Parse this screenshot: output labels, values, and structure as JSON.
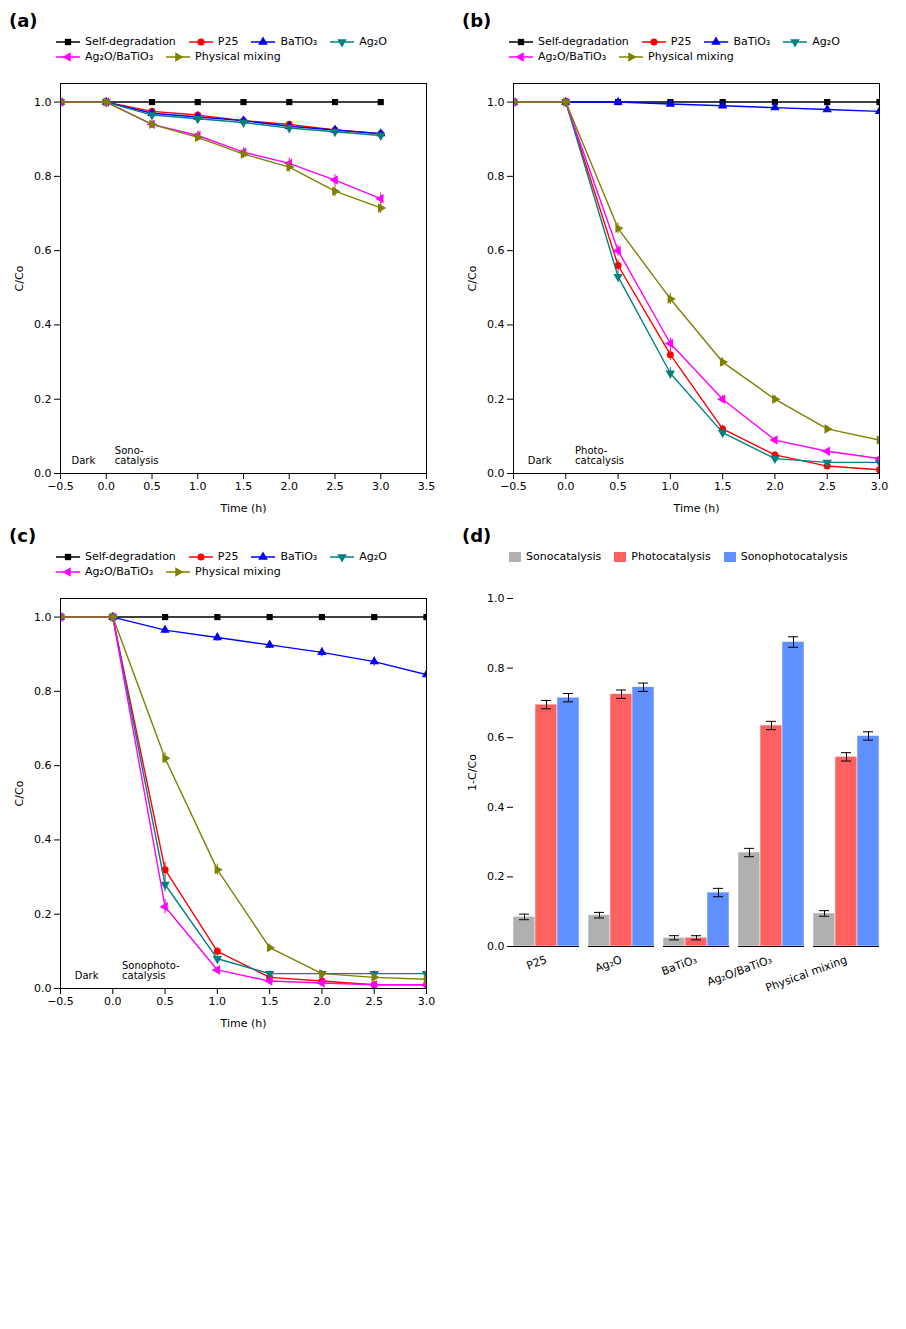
{
  "chart_data": [
    {
      "type": "line",
      "title": "(a)",
      "xlabel": "Time (h)",
      "ylabel": "C/Co",
      "xlim": [
        -0.5,
        3.5
      ],
      "ylim": [
        0.0,
        1.05
      ],
      "xticks": [
        {
          "value": -0.5,
          "label": "−0.5"
        },
        {
          "value": 0.0,
          "label": "0.0"
        },
        0.5,
        {
          "value": 1.0,
          "label": "1.0"
        },
        1.5,
        {
          "value": 2.0,
          "label": "2.0"
        },
        2.5,
        {
          "value": 3.0,
          "label": "3.0"
        },
        3.5
      ],
      "yticks": [
        {
          "value": 0.0,
          "label": "0.0"
        },
        0.2,
        0.4,
        0.6,
        0.8,
        {
          "value": 1.0,
          "label": "1.0"
        }
      ],
      "grid": false,
      "legend": "top",
      "annotations": [
        {
          "text": "Dark",
          "x": -0.25
        },
        {
          "text": "Sono-\ncatalysis",
          "x": 0.05
        }
      ],
      "series": [
        {
          "name": "Self-degradation",
          "color": "#000000",
          "marker": "square",
          "x": [
            -0.5,
            0.0,
            0.5,
            1.0,
            1.5,
            2.0,
            2.5,
            3.0
          ],
          "values": [
            1.0,
            1.0,
            1.0,
            1.0,
            1.0,
            1.0,
            1.0,
            1.0
          ],
          "yerr": [
            0.005,
            0.005,
            0.005,
            0.005,
            0.005,
            0.005,
            0.005,
            0.005
          ]
        },
        {
          "name": "P25",
          "color": "#ff0000",
          "marker": "circle",
          "x": [
            -0.5,
            0.0,
            0.5,
            1.0,
            1.5,
            2.0,
            2.5,
            3.0
          ],
          "values": [
            1.0,
            1.0,
            0.975,
            0.965,
            0.95,
            0.94,
            0.925,
            0.915
          ],
          "yerr": [
            0.005,
            0.005,
            0.008,
            0.008,
            0.008,
            0.008,
            0.008,
            0.008
          ]
        },
        {
          "name": "BaTiO₃",
          "color": "#0000ff",
          "marker": "triangle-up",
          "x": [
            -0.5,
            0.0,
            0.5,
            1.0,
            1.5,
            2.0,
            2.5,
            3.0
          ],
          "values": [
            1.0,
            1.0,
            0.97,
            0.96,
            0.95,
            0.935,
            0.925,
            0.915
          ],
          "yerr": [
            0.005,
            0.005,
            0.008,
            0.008,
            0.008,
            0.008,
            0.008,
            0.008
          ]
        },
        {
          "name": "Ag₂O",
          "color": "#008080",
          "marker": "triangle-down",
          "x": [
            -0.5,
            0.0,
            0.5,
            1.0,
            1.5,
            2.0,
            2.5,
            3.0
          ],
          "values": [
            1.0,
            1.0,
            0.965,
            0.955,
            0.945,
            0.93,
            0.92,
            0.91
          ],
          "yerr": [
            0.005,
            0.005,
            0.008,
            0.008,
            0.008,
            0.008,
            0.008,
            0.008
          ]
        },
        {
          "name": "Ag₂O/BaTiO₃",
          "color": "#ff00ff",
          "marker": "triangle-left",
          "x": [
            -0.5,
            0.0,
            0.5,
            1.0,
            1.5,
            2.0,
            2.5,
            3.0
          ],
          "values": [
            1.0,
            1.0,
            0.94,
            0.91,
            0.865,
            0.835,
            0.79,
            0.74
          ],
          "yerr": [
            0.005,
            0.005,
            0.01,
            0.012,
            0.012,
            0.015,
            0.015,
            0.015
          ]
        },
        {
          "name": "Physical mixing",
          "color": "#808000",
          "marker": "triangle-right",
          "x": [
            -0.5,
            0.0,
            0.5,
            1.0,
            1.5,
            2.0,
            2.5,
            3.0
          ],
          "values": [
            1.0,
            1.0,
            0.94,
            0.905,
            0.86,
            0.825,
            0.76,
            0.715
          ],
          "yerr": [
            0.005,
            0.005,
            0.01,
            0.012,
            0.012,
            0.015,
            0.015,
            0.015
          ]
        }
      ]
    },
    {
      "type": "line",
      "title": "(b)",
      "xlabel": "Time (h)",
      "ylabel": "C/Co",
      "xlim": [
        -0.5,
        3.0
      ],
      "ylim": [
        0.0,
        1.05
      ],
      "xticks": [
        {
          "value": -0.5,
          "label": "−0.5"
        },
        {
          "value": 0.0,
          "label": "0.0"
        },
        0.5,
        {
          "value": 1.0,
          "label": "1.0"
        },
        1.5,
        {
          "value": 2.0,
          "label": "2.0"
        },
        2.5,
        {
          "value": 3.0,
          "label": "3.0"
        }
      ],
      "yticks": [
        {
          "value": 0.0,
          "label": "0.0"
        },
        0.2,
        0.4,
        0.6,
        0.8,
        {
          "value": 1.0,
          "label": "1.0"
        }
      ],
      "grid": false,
      "legend": "top",
      "annotations": [
        {
          "text": "Dark",
          "x": -0.25
        },
        {
          "text": "Photo-\ncatcalysis",
          "x": 0.05
        }
      ],
      "series": [
        {
          "name": "Self-degradation",
          "color": "#000000",
          "marker": "square",
          "x": [
            -0.5,
            0.0,
            0.5,
            1.0,
            1.5,
            2.0,
            2.5,
            3.0
          ],
          "values": [
            1.0,
            1.0,
            1.0,
            1.0,
            1.0,
            1.0,
            1.0,
            1.0
          ],
          "yerr": [
            0.005,
            0.005,
            0.005,
            0.005,
            0.005,
            0.005,
            0.005,
            0.005
          ]
        },
        {
          "name": "P25",
          "color": "#ff0000",
          "marker": "circle",
          "x": [
            -0.5,
            0.0,
            0.5,
            1.0,
            1.5,
            2.0,
            2.5,
            3.0
          ],
          "values": [
            1.0,
            1.0,
            0.56,
            0.32,
            0.12,
            0.05,
            0.02,
            0.01
          ],
          "yerr": [
            0.005,
            0.005,
            0.015,
            0.015,
            0.01,
            0.008,
            0.005,
            0.005
          ]
        },
        {
          "name": "BaTiO₃",
          "color": "#0000ff",
          "marker": "triangle-up",
          "x": [
            -0.5,
            0.0,
            0.5,
            1.0,
            1.5,
            2.0,
            2.5,
            3.0
          ],
          "values": [
            1.0,
            1.0,
            1.0,
            0.995,
            0.99,
            0.985,
            0.98,
            0.975
          ],
          "yerr": [
            0.005,
            0.005,
            0.005,
            0.005,
            0.005,
            0.005,
            0.005,
            0.005
          ]
        },
        {
          "name": "Ag₂O",
          "color": "#008080",
          "marker": "triangle-down",
          "x": [
            -0.5,
            0.0,
            0.5,
            1.0,
            1.5,
            2.0,
            2.5,
            3.0
          ],
          "values": [
            1.0,
            1.0,
            0.53,
            0.27,
            0.11,
            0.04,
            0.03,
            0.03
          ],
          "yerr": [
            0.005,
            0.005,
            0.015,
            0.015,
            0.01,
            0.008,
            0.005,
            0.005
          ]
        },
        {
          "name": "Ag₂O/BaTiO₃",
          "color": "#ff00ff",
          "marker": "triangle-left",
          "x": [
            -0.5,
            0.0,
            0.5,
            1.0,
            1.5,
            2.0,
            2.5,
            3.0
          ],
          "values": [
            1.0,
            1.0,
            0.6,
            0.35,
            0.2,
            0.09,
            0.06,
            0.04
          ],
          "yerr": [
            0.005,
            0.005,
            0.015,
            0.015,
            0.01,
            0.008,
            0.007,
            0.005
          ]
        },
        {
          "name": "Physical mixing",
          "color": "#808000",
          "marker": "triangle-right",
          "x": [
            -0.5,
            0.0,
            0.5,
            1.0,
            1.5,
            2.0,
            2.5,
            3.0
          ],
          "values": [
            1.0,
            1.0,
            0.66,
            0.47,
            0.3,
            0.2,
            0.12,
            0.09
          ],
          "yerr": [
            0.005,
            0.005,
            0.015,
            0.015,
            0.012,
            0.01,
            0.008,
            0.007
          ]
        }
      ]
    },
    {
      "type": "line",
      "title": "(c)",
      "xlabel": "Time (h)",
      "ylabel": "C/Co",
      "xlim": [
        -0.5,
        3.0
      ],
      "ylim": [
        0.0,
        1.05
      ],
      "xticks": [
        {
          "value": -0.5,
          "label": "−0.5"
        },
        {
          "value": 0.0,
          "label": "0.0"
        },
        0.5,
        {
          "value": 1.0,
          "label": "1.0"
        },
        1.5,
        {
          "value": 2.0,
          "label": "2.0"
        },
        2.5,
        {
          "value": 3.0,
          "label": "3.0"
        }
      ],
      "yticks": [
        {
          "value": 0.0,
          "label": "0.0"
        },
        0.2,
        0.4,
        0.6,
        0.8,
        {
          "value": 1.0,
          "label": "1.0"
        }
      ],
      "grid": false,
      "legend": "top",
      "annotations": [
        {
          "text": "Dark",
          "x": -0.25
        },
        {
          "text": "Sonophoto-\ncatalysis",
          "x": 0.05
        }
      ],
      "series": [
        {
          "name": "Self-degradation",
          "color": "#000000",
          "marker": "square",
          "x": [
            -0.5,
            0.0,
            0.5,
            1.0,
            1.5,
            2.0,
            2.5,
            3.0
          ],
          "values": [
            1.0,
            1.0,
            1.0,
            1.0,
            1.0,
            1.0,
            1.0,
            1.0
          ],
          "yerr": [
            0.005,
            0.005,
            0.005,
            0.005,
            0.005,
            0.005,
            0.005,
            0.005
          ]
        },
        {
          "name": "P25",
          "color": "#ff0000",
          "marker": "circle",
          "x": [
            -0.5,
            0.0,
            0.5,
            1.0,
            1.5,
            2.0,
            2.5,
            3.0
          ],
          "values": [
            1.0,
            1.0,
            0.32,
            0.1,
            0.03,
            0.02,
            0.01,
            0.01
          ],
          "yerr": [
            0.005,
            0.005,
            0.02,
            0.01,
            0.005,
            0.005,
            0.005,
            0.005
          ]
        },
        {
          "name": "BaTiO₃",
          "color": "#0000ff",
          "marker": "triangle-up",
          "x": [
            -0.5,
            0.0,
            0.5,
            1.0,
            1.5,
            2.0,
            2.5,
            3.0
          ],
          "values": [
            1.0,
            1.0,
            0.965,
            0.945,
            0.925,
            0.905,
            0.88,
            0.845
          ],
          "yerr": [
            0.005,
            0.005,
            0.01,
            0.01,
            0.01,
            0.012,
            0.012,
            0.015
          ]
        },
        {
          "name": "Ag₂O",
          "color": "#008080",
          "marker": "triangle-down",
          "x": [
            -0.5,
            0.0,
            0.5,
            1.0,
            1.5,
            2.0,
            2.5,
            3.0
          ],
          "values": [
            1.0,
            1.0,
            0.28,
            0.08,
            0.04,
            0.04,
            0.04,
            0.04
          ],
          "yerr": [
            0.005,
            0.005,
            0.02,
            0.01,
            0.007,
            0.007,
            0.007,
            0.007
          ]
        },
        {
          "name": "Ag₂O/BaTiO₃",
          "color": "#ff00ff",
          "marker": "triangle-left",
          "x": [
            -0.5,
            0.0,
            0.5,
            1.0,
            1.5,
            2.0,
            2.5,
            3.0
          ],
          "values": [
            1.0,
            1.0,
            0.22,
            0.05,
            0.02,
            0.015,
            0.01,
            0.01
          ],
          "yerr": [
            0.005,
            0.005,
            0.02,
            0.008,
            0.005,
            0.005,
            0.005,
            0.005
          ]
        },
        {
          "name": "Physical mixing",
          "color": "#808000",
          "marker": "triangle-right",
          "x": [
            -0.5,
            0.0,
            0.5,
            1.0,
            1.5,
            2.0,
            2.5,
            3.0
          ],
          "values": [
            1.0,
            1.0,
            0.62,
            0.32,
            0.11,
            0.04,
            0.03,
            0.025
          ],
          "yerr": [
            0.005,
            0.005,
            0.015,
            0.015,
            0.01,
            0.008,
            0.007,
            0.007
          ]
        }
      ]
    },
    {
      "type": "bar",
      "title": "(d)",
      "ylabel": "1-C/Co",
      "ylim": [
        0.0,
        1.0
      ],
      "yticks": [
        {
          "value": 0.0,
          "label": "0.0"
        },
        0.2,
        0.4,
        0.6,
        0.8,
        {
          "value": 1.0,
          "label": "1.0"
        }
      ],
      "grid": false,
      "legend": "top",
      "categories": [
        "P25",
        "Ag₂O",
        "BaTiO₃",
        "Ag₂O/BaTiO₃",
        "Physical mixing"
      ],
      "series": [
        {
          "name": "Sonocatalysis",
          "color": "#b0b0b0",
          "values": [
            0.085,
            0.09,
            0.025,
            0.27,
            0.095
          ],
          "yerr": [
            0.008,
            0.008,
            0.006,
            0.012,
            0.008
          ]
        },
        {
          "name": "Photocatalysis",
          "color": "#ff6060",
          "values": [
            0.695,
            0.725,
            0.025,
            0.635,
            0.545
          ],
          "yerr": [
            0.012,
            0.012,
            0.006,
            0.012,
            0.012
          ]
        },
        {
          "name": "Sonophotocatalysis",
          "color": "#6090ff",
          "values": [
            0.715,
            0.745,
            0.155,
            0.875,
            0.605
          ],
          "yerr": [
            0.012,
            0.012,
            0.012,
            0.015,
            0.012
          ]
        }
      ]
    }
  ]
}
